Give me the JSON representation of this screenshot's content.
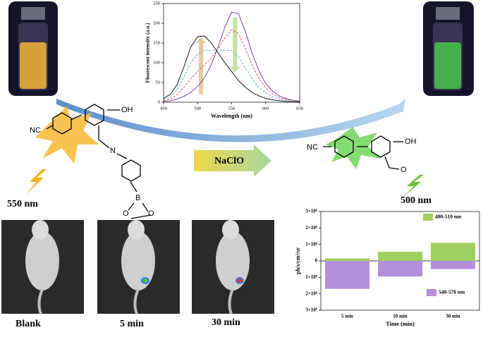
{
  "labels": {
    "reagent": "NaClO",
    "excitation": "550 nm",
    "emission": "500 nm",
    "panels": [
      "Blank",
      "5 min",
      "30 min"
    ],
    "atoms_left": [
      "NC",
      "OH",
      "N",
      "B",
      "O",
      "O"
    ],
    "atoms_right": [
      "NC",
      "OH",
      "O"
    ]
  },
  "chart_data": [
    {
      "type": "line",
      "x_label": "Wavelength (nm)",
      "y_label": "Fluorescent intensity (a.u.)",
      "x": [
        450,
        460,
        470,
        480,
        490,
        500,
        510,
        520,
        530,
        540,
        550,
        560,
        570,
        580,
        590,
        600,
        610,
        620,
        630,
        640,
        650
      ],
      "xlim": [
        450,
        650
      ],
      "xticks": [
        450,
        500,
        550,
        600,
        650
      ],
      "ylim": [
        0,
        250
      ],
      "yticks": [
        0,
        50,
        100,
        150,
        200,
        250
      ],
      "series": [
        {
          "color": "#7030a0",
          "dashed": false,
          "values": [
            2,
            4,
            8,
            15,
            25,
            40,
            62,
            95,
            140,
            190,
            228,
            225,
            180,
            125,
            80,
            48,
            28,
            16,
            9,
            5,
            3
          ]
        },
        {
          "color": "#c0504d",
          "dashed": true,
          "values": [
            4,
            9,
            19,
            38,
            60,
            78,
            94,
            112,
            136,
            163,
            183,
            174,
            137,
            95,
            61,
            37,
            21,
            12,
            7,
            4,
            2
          ]
        },
        {
          "color": "#4bacc6",
          "dashed": true,
          "values": [
            7,
            14,
            32,
            64,
            100,
            122,
            131,
            131,
            130,
            132,
            131,
            115,
            88,
            60,
            38,
            23,
            14,
            8,
            5,
            2,
            2
          ]
        },
        {
          "color": "#000000",
          "dashed": false,
          "values": [
            10,
            20,
            45,
            90,
            140,
            166,
            168,
            150,
            125,
            100,
            78,
            55,
            38,
            25,
            16,
            10,
            6,
            4,
            2,
            1,
            1
          ]
        }
      ]
    },
    {
      "type": "bar",
      "x_label": "Time (min)",
      "y_label": "ph/s/cm²/sr",
      "categories": [
        "5 min",
        "10 min",
        "30 min"
      ],
      "ylim": [
        -3000000,
        3000000
      ],
      "yticks": [
        {
          "value": -3000000,
          "label": "3×10⁶"
        },
        {
          "value": -2000000,
          "label": "2×10⁶"
        },
        {
          "value": -1000000,
          "label": "1×10⁶"
        },
        0,
        {
          "value": 1000000,
          "label": "1×10⁶"
        },
        {
          "value": 2000000,
          "label": "2×10⁶"
        },
        {
          "value": 3000000,
          "label": "3×10⁶"
        }
      ],
      "series": [
        {
          "name": "480-510 nm",
          "color": "#9fcf5e",
          "values": [
            150000,
            550000,
            1100000
          ]
        },
        {
          "name": "540-570 nm",
          "color": "#b48fdc",
          "values": [
            -1700000,
            -950000,
            -500000
          ]
        }
      ]
    }
  ]
}
